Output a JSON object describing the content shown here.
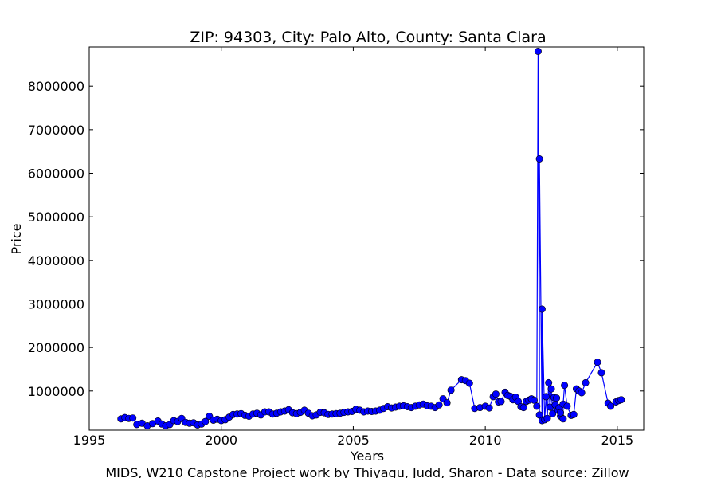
{
  "chart_data": {
    "type": "line",
    "title": "ZIP: 94303, City: Palo Alto, County: Santa Clara",
    "xlabel": "Years",
    "ylabel": "Price",
    "footer": "MIDS, W210 Capstone Project work by Thiyagu, Judd, Sharon  -  Data source: Zillow",
    "xlim": [
      1995,
      2016
    ],
    "ylim": [
      100000,
      8900000
    ],
    "x_ticks": [
      1995,
      2000,
      2005,
      2010,
      2015
    ],
    "y_ticks": [
      1000000,
      2000000,
      3000000,
      4000000,
      5000000,
      6000000,
      7000000,
      8000000
    ],
    "grid": false,
    "series": [
      {
        "marker": "circle",
        "color": "#0000ff",
        "points": [
          [
            1996.2,
            360000
          ],
          [
            1996.35,
            390000
          ],
          [
            1996.5,
            370000
          ],
          [
            1996.65,
            380000
          ],
          [
            1996.8,
            230000
          ],
          [
            1997.0,
            260000
          ],
          [
            1997.2,
            200000
          ],
          [
            1997.4,
            250000
          ],
          [
            1997.6,
            310000
          ],
          [
            1997.75,
            240000
          ],
          [
            1997.9,
            200000
          ],
          [
            1998.05,
            230000
          ],
          [
            1998.2,
            320000
          ],
          [
            1998.35,
            300000
          ],
          [
            1998.5,
            370000
          ],
          [
            1998.65,
            280000
          ],
          [
            1998.8,
            260000
          ],
          [
            1998.95,
            270000
          ],
          [
            1999.1,
            220000
          ],
          [
            1999.25,
            240000
          ],
          [
            1999.4,
            300000
          ],
          [
            1999.55,
            420000
          ],
          [
            1999.7,
            330000
          ],
          [
            1999.85,
            350000
          ],
          [
            2000.0,
            320000
          ],
          [
            2000.15,
            340000
          ],
          [
            2000.3,
            400000
          ],
          [
            2000.45,
            460000
          ],
          [
            2000.6,
            470000
          ],
          [
            2000.75,
            480000
          ],
          [
            2000.9,
            440000
          ],
          [
            2001.05,
            420000
          ],
          [
            2001.2,
            470000
          ],
          [
            2001.35,
            490000
          ],
          [
            2001.5,
            450000
          ],
          [
            2001.65,
            520000
          ],
          [
            2001.8,
            520000
          ],
          [
            2001.95,
            470000
          ],
          [
            2002.1,
            490000
          ],
          [
            2002.25,
            520000
          ],
          [
            2002.4,
            540000
          ],
          [
            2002.55,
            570000
          ],
          [
            2002.7,
            500000
          ],
          [
            2002.85,
            480000
          ],
          [
            2003.0,
            510000
          ],
          [
            2003.15,
            560000
          ],
          [
            2003.3,
            490000
          ],
          [
            2003.45,
            430000
          ],
          [
            2003.6,
            450000
          ],
          [
            2003.75,
            510000
          ],
          [
            2003.9,
            500000
          ],
          [
            2004.05,
            460000
          ],
          [
            2004.2,
            470000
          ],
          [
            2004.35,
            480000
          ],
          [
            2004.5,
            490000
          ],
          [
            2004.65,
            510000
          ],
          [
            2004.8,
            520000
          ],
          [
            2004.95,
            530000
          ],
          [
            2005.1,
            580000
          ],
          [
            2005.25,
            560000
          ],
          [
            2005.4,
            520000
          ],
          [
            2005.55,
            540000
          ],
          [
            2005.7,
            530000
          ],
          [
            2005.85,
            540000
          ],
          [
            2006.0,
            560000
          ],
          [
            2006.15,
            600000
          ],
          [
            2006.3,
            640000
          ],
          [
            2006.45,
            610000
          ],
          [
            2006.6,
            630000
          ],
          [
            2006.75,
            650000
          ],
          [
            2006.9,
            660000
          ],
          [
            2007.05,
            640000
          ],
          [
            2007.2,
            620000
          ],
          [
            2007.35,
            650000
          ],
          [
            2007.5,
            680000
          ],
          [
            2007.65,
            700000
          ],
          [
            2007.8,
            660000
          ],
          [
            2007.95,
            650000
          ],
          [
            2008.1,
            620000
          ],
          [
            2008.25,
            680000
          ],
          [
            2008.4,
            820000
          ],
          [
            2008.55,
            730000
          ],
          [
            2008.7,
            1020000
          ],
          [
            2009.1,
            1260000
          ],
          [
            2009.25,
            1240000
          ],
          [
            2009.4,
            1180000
          ],
          [
            2009.6,
            600000
          ],
          [
            2009.8,
            620000
          ],
          [
            2010.0,
            650000
          ],
          [
            2010.15,
            610000
          ],
          [
            2010.3,
            870000
          ],
          [
            2010.4,
            930000
          ],
          [
            2010.5,
            750000
          ],
          [
            2010.6,
            760000
          ],
          [
            2010.75,
            970000
          ],
          [
            2010.85,
            900000
          ],
          [
            2010.95,
            880000
          ],
          [
            2011.05,
            800000
          ],
          [
            2011.15,
            860000
          ],
          [
            2011.25,
            760000
          ],
          [
            2011.35,
            640000
          ],
          [
            2011.45,
            620000
          ],
          [
            2011.55,
            760000
          ],
          [
            2011.65,
            790000
          ],
          [
            2011.75,
            820000
          ],
          [
            2011.85,
            790000
          ],
          [
            2011.95,
            650000
          ],
          [
            2012.05,
            450000
          ],
          [
            2012.15,
            320000
          ],
          [
            2012.25,
            340000
          ],
          [
            2012.35,
            370000
          ],
          [
            2012.45,
            630000
          ],
          [
            2012.55,
            480000
          ],
          [
            2012.65,
            680000
          ],
          [
            2012.75,
            560000
          ],
          [
            2012.85,
            420000
          ],
          [
            2012.95,
            360000
          ],
          [
            2012.0,
            8800000
          ],
          [
            2012.05,
            6330000
          ],
          [
            2012.15,
            2880000
          ],
          [
            2012.3,
            870000
          ],
          [
            2012.4,
            1190000
          ],
          [
            2012.5,
            1050000
          ],
          [
            2012.6,
            850000
          ],
          [
            2012.7,
            840000
          ],
          [
            2012.8,
            620000
          ],
          [
            2012.85,
            500000
          ],
          [
            2012.95,
            700000
          ],
          [
            2013.0,
            1130000
          ],
          [
            2013.1,
            650000
          ],
          [
            2013.25,
            440000
          ],
          [
            2013.35,
            460000
          ],
          [
            2013.45,
            1050000
          ],
          [
            2013.55,
            1000000
          ],
          [
            2013.65,
            960000
          ],
          [
            2013.8,
            1190000
          ],
          [
            2014.25,
            1660000
          ],
          [
            2014.4,
            1420000
          ],
          [
            2014.65,
            720000
          ],
          [
            2014.75,
            650000
          ],
          [
            2014.95,
            750000
          ],
          [
            2015.05,
            780000
          ],
          [
            2015.15,
            800000
          ]
        ]
      }
    ]
  }
}
